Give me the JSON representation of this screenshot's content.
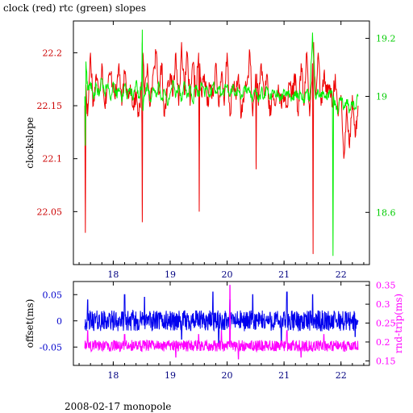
{
  "title": "clock (red) rtc (green) slopes",
  "footer": "2008-02-17 monopole",
  "colors": {
    "clock": "#ee0000",
    "rtc": "#00ee00",
    "offset": "#0000ee",
    "rnd_trip": "#ff00ff",
    "axis": "#000000"
  },
  "chart_data": [
    {
      "type": "line",
      "title": "clock (red) rtc (green) slopes",
      "ylabel": "clockslope",
      "y2label": "",
      "xlim": [
        17.3,
        22.5
      ],
      "ylim": [
        22.0,
        22.23
      ],
      "y2lim": [
        18.42,
        19.26
      ],
      "x_ticks": [
        18,
        19,
        20,
        21,
        22
      ],
      "y_ticks": [
        22.05,
        22.1,
        22.15,
        22.2
      ],
      "y2_ticks": [
        18.6,
        19,
        19.2
      ],
      "x_tick_labels": [
        "18",
        "19",
        "20",
        "21",
        "22"
      ],
      "y_tick_labels": [
        "22.05",
        "22.1",
        "22.15",
        "22.2"
      ],
      "y2_tick_labels": [
        "18.6",
        "19",
        "19.2"
      ],
      "grid": false,
      "series": [
        {
          "axis": "left",
          "color": "#ee0000",
          "x": [
            17.5,
            17.51,
            17.52,
            17.55,
            17.6,
            17.65,
            17.7,
            17.75,
            17.8,
            17.85,
            17.9,
            17.95,
            18.0,
            18.05,
            18.1,
            18.15,
            18.2,
            18.25,
            18.3,
            18.35,
            18.4,
            18.45,
            18.5,
            18.51,
            18.52,
            18.55,
            18.6,
            18.65,
            18.7,
            18.75,
            18.8,
            18.85,
            18.9,
            18.95,
            19.0,
            19.05,
            19.1,
            19.15,
            19.2,
            19.25,
            19.3,
            19.35,
            19.4,
            19.45,
            19.5,
            19.51,
            19.52,
            19.55,
            19.6,
            19.65,
            19.7,
            19.75,
            19.8,
            19.85,
            19.9,
            19.95,
            20.0,
            20.05,
            20.1,
            20.15,
            20.2,
            20.25,
            20.3,
            20.35,
            20.4,
            20.45,
            20.5,
            20.51,
            20.52,
            20.55,
            20.6,
            20.65,
            20.7,
            20.75,
            20.8,
            20.85,
            20.9,
            20.95,
            21.0,
            21.05,
            21.1,
            21.15,
            21.2,
            21.25,
            21.3,
            21.35,
            21.4,
            21.45,
            21.5,
            21.51,
            21.52,
            21.55,
            21.6,
            21.65,
            21.7,
            21.75,
            21.8,
            21.85,
            21.9,
            21.95,
            22.0,
            22.05,
            22.1,
            22.15,
            22.2,
            22.25,
            22.3
          ],
          "y": [
            22.15,
            22.03,
            22.17,
            22.14,
            22.2,
            22.15,
            22.18,
            22.16,
            22.19,
            22.15,
            22.17,
            22.18,
            22.17,
            22.16,
            22.19,
            22.15,
            22.18,
            22.16,
            22.17,
            22.15,
            22.16,
            22.14,
            22.17,
            22.04,
            22.2,
            22.16,
            22.19,
            22.15,
            22.18,
            22.2,
            22.16,
            22.19,
            22.14,
            22.17,
            22.18,
            22.16,
            22.2,
            22.15,
            22.21,
            22.16,
            22.2,
            22.15,
            22.19,
            22.16,
            22.2,
            22.05,
            22.19,
            22.16,
            22.18,
            22.15,
            22.17,
            22.16,
            22.19,
            22.15,
            22.18,
            22.15,
            22.2,
            22.14,
            22.17,
            22.16,
            22.18,
            22.14,
            22.16,
            22.17,
            22.2,
            22.14,
            22.18,
            22.09,
            22.18,
            22.15,
            22.19,
            22.16,
            22.18,
            22.14,
            22.16,
            22.15,
            22.17,
            22.15,
            22.16,
            22.15,
            22.17,
            22.16,
            22.18,
            22.14,
            22.19,
            22.15,
            22.2,
            22.14,
            22.19,
            22.01,
            22.21,
            22.16,
            22.2,
            22.15,
            22.18,
            22.16,
            22.17,
            22.15,
            22.18,
            22.14,
            22.16,
            22.1,
            22.15,
            22.11,
            22.16,
            22.12,
            22.15
          ]
        },
        {
          "axis": "right",
          "color": "#00ee00",
          "x": [
            17.5,
            17.51,
            17.52,
            17.55,
            17.6,
            17.65,
            17.7,
            17.75,
            17.8,
            17.85,
            17.9,
            17.95,
            18.0,
            18.05,
            18.1,
            18.15,
            18.2,
            18.25,
            18.3,
            18.35,
            18.4,
            18.45,
            18.5,
            18.51,
            18.52,
            18.55,
            18.6,
            18.65,
            18.7,
            18.75,
            18.8,
            18.85,
            18.9,
            18.95,
            19.0,
            19.05,
            19.1,
            19.15,
            19.2,
            19.25,
            19.3,
            19.35,
            19.4,
            19.45,
            19.5,
            19.55,
            19.6,
            19.65,
            19.7,
            19.75,
            19.8,
            19.85,
            19.9,
            19.95,
            20.0,
            20.05,
            20.1,
            20.15,
            20.2,
            20.25,
            20.3,
            20.35,
            20.4,
            20.45,
            20.5,
            20.55,
            20.6,
            20.65,
            20.7,
            20.75,
            20.8,
            20.85,
            20.9,
            20.95,
            21.0,
            21.05,
            21.1,
            21.15,
            21.2,
            21.25,
            21.3,
            21.35,
            21.4,
            21.45,
            21.5,
            21.55,
            21.6,
            21.65,
            21.7,
            21.75,
            21.8,
            21.85,
            21.86,
            21.87,
            21.9,
            21.95,
            22.0,
            22.05,
            22.1,
            22.15,
            22.2,
            22.25,
            22.3
          ],
          "y": [
            19.0,
            18.83,
            19.12,
            19.02,
            19.05,
            18.99,
            19.04,
            19.0,
            19.06,
            19.01,
            19.04,
            18.99,
            19.05,
            19.0,
            19.03,
            18.98,
            19.04,
            19.0,
            19.03,
            18.99,
            19.05,
            19.0,
            19.04,
            19.23,
            18.95,
            19.0,
            19.04,
            18.99,
            19.03,
            19.0,
            19.05,
            18.99,
            19.02,
            18.97,
            19.01,
            19.05,
            19.0,
            19.04,
            18.99,
            19.05,
            19.0,
            19.03,
            18.98,
            19.04,
            19.0,
            19.04,
            19.01,
            19.03,
            19.0,
            19.04,
            19.02,
            19.03,
            19.01,
            19.02,
            19.04,
            19.0,
            19.03,
            19.01,
            19.02,
            19.0,
            19.03,
            19.01,
            19.02,
            18.99,
            19.03,
            18.98,
            19.02,
            19.0,
            19.03,
            18.99,
            19.02,
            19.0,
            19.01,
            18.99,
            19.02,
            19.0,
            19.01,
            18.99,
            19.02,
            19.0,
            19.01,
            18.99,
            19.02,
            18.99,
            19.22,
            19.0,
            19.02,
            19.0,
            19.01,
            18.99,
            19.02,
            19.0,
            18.45,
            19.0,
            18.97,
            18.95,
            19.0,
            18.96,
            18.99,
            18.95,
            18.98,
            18.96,
            19.0
          ]
        }
      ]
    },
    {
      "type": "line",
      "ylabel": "offset(ms)",
      "y2label": "rnd-trip(ms)",
      "xlim": [
        17.3,
        22.5
      ],
      "ylim": [
        -0.085,
        0.075
      ],
      "y2lim": [
        0.138,
        0.36
      ],
      "x_ticks": [
        18,
        19,
        20,
        21,
        22
      ],
      "y_ticks": [
        -0.05,
        0,
        0.05
      ],
      "y2_ticks": [
        0.15,
        0.2,
        0.25,
        0.3,
        0.35
      ],
      "x_tick_labels": [
        "18",
        "19",
        "20",
        "21",
        "22"
      ],
      "y_tick_labels": [
        "-0.05",
        "0",
        "0.05"
      ],
      "y2_tick_labels": [
        "0.15",
        "0.2",
        "0.25",
        "0.3",
        "0.35"
      ],
      "grid": false,
      "series": [
        {
          "axis": "left",
          "color": "#0000ee",
          "x_range": [
            17.5,
            22.3
          ],
          "y_center": 0.0,
          "y_spread": 0.02,
          "y_peaks": [
            [
              17.55,
              0.04
            ],
            [
              18.2,
              0.05
            ],
            [
              18.55,
              0.045
            ],
            [
              19.75,
              0.055
            ],
            [
              20.05,
              0.04
            ],
            [
              20.45,
              0.05
            ],
            [
              21.05,
              0.055
            ],
            [
              21.5,
              0.05
            ],
            [
              19.2,
              -0.035
            ],
            [
              19.85,
              -0.045
            ],
            [
              20.95,
              -0.04
            ],
            [
              22.25,
              -0.03
            ]
          ]
        },
        {
          "axis": "right",
          "color": "#ff00ff",
          "x_range": [
            17.5,
            22.3
          ],
          "y_center": 0.19,
          "y_spread": 0.015,
          "y_peaks": [
            [
              17.55,
              0.23
            ],
            [
              18.2,
              0.22
            ],
            [
              19.5,
              0.22
            ],
            [
              19.9,
              0.23
            ],
            [
              20.05,
              0.35
            ],
            [
              21.05,
              0.23
            ],
            [
              21.7,
              0.22
            ],
            [
              19.1,
              0.16
            ],
            [
              20.2,
              0.155
            ],
            [
              21.3,
              0.16
            ]
          ]
        }
      ]
    }
  ]
}
